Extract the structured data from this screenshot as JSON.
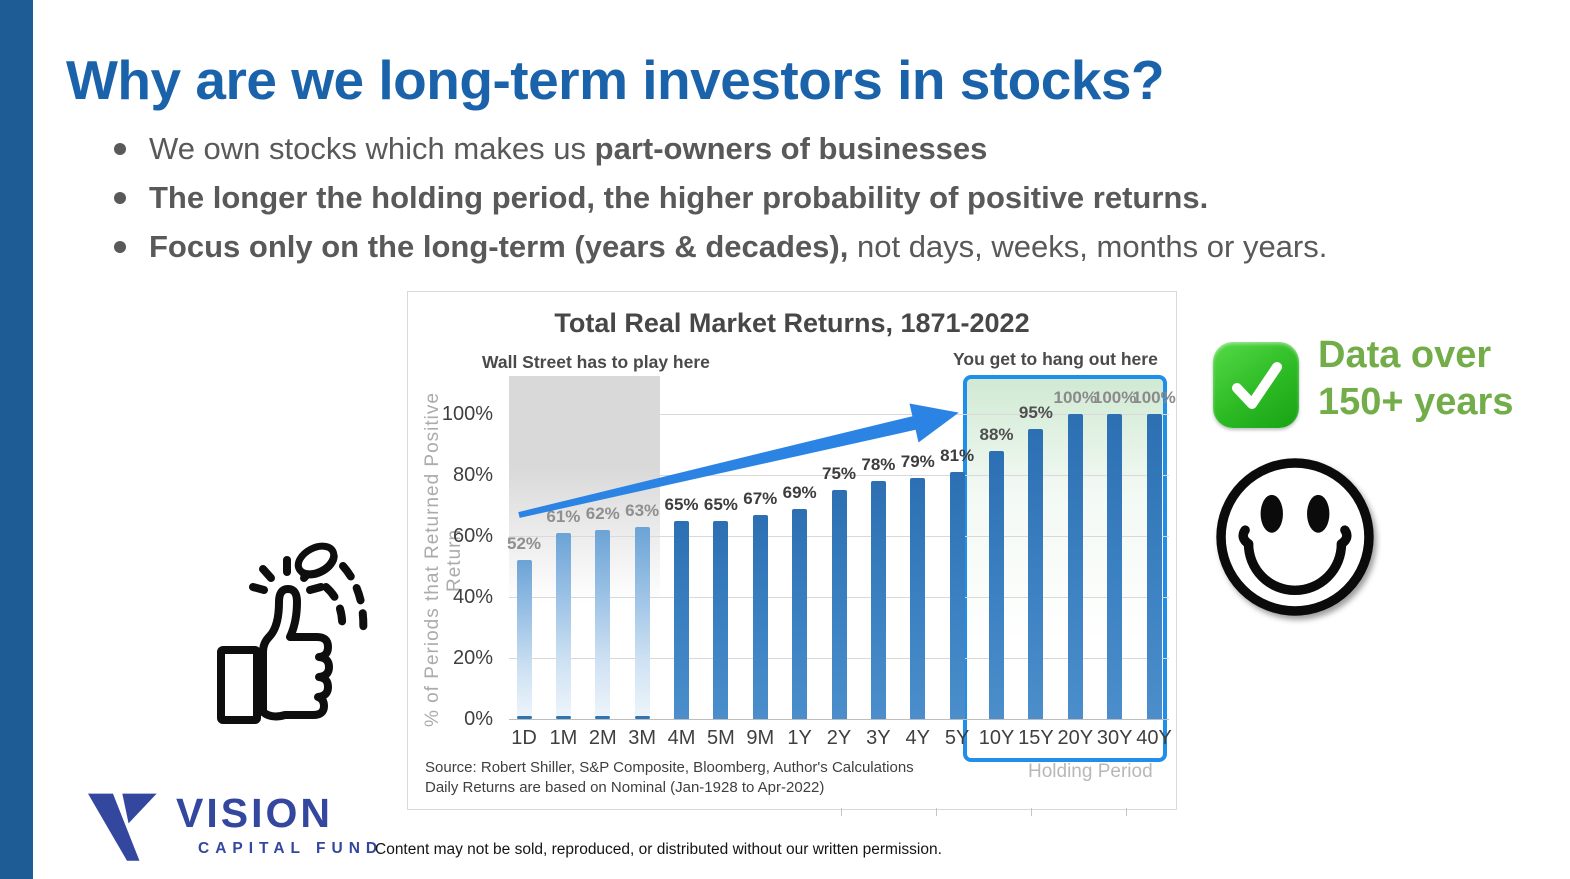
{
  "slide": {
    "title": "Why are we long-term investors in stocks?",
    "bullets": [
      {
        "pre": "We own stocks which makes us ",
        "bold": "part-owners of businesses",
        "post": ""
      },
      {
        "pre": "",
        "bold": "The longer the holding period, the higher probability of positive returns.",
        "post": ""
      },
      {
        "pre": "",
        "bold": "Focus only on the long-term (years & decades),",
        "post": " not days, weeks, months or years."
      }
    ],
    "callout": {
      "line1": "Data over",
      "line2": "150+ years"
    },
    "logo": {
      "name": "VISION",
      "subname": "CAPITAL FUND"
    },
    "footer_disclaimer": "Content may not be sold, reproduced, or distributed without our written permission.",
    "icons": {
      "callout_icon": "check-mark-icon",
      "mood_icon": "smiley-face-icon",
      "gesture_icon": "thumbs-up-coin-flip-icon",
      "logo_icon": "vision-v-mark-icon"
    },
    "colors": {
      "sidebar_blue": "#1d5c94",
      "title_blue": "#1a63ab",
      "body_gray": "#595959",
      "accent_green": "#72ad4a",
      "logo_navy": "#34479e"
    }
  },
  "chart_data": {
    "type": "bar",
    "title": "Total Real Market Returns, 1871-2022",
    "xlabel": "Holding Period",
    "ylabel": "% of Periods that Returned Positive Return",
    "categories": [
      "1D",
      "1M",
      "2M",
      "3M",
      "4M",
      "5M",
      "9M",
      "1Y",
      "2Y",
      "3Y",
      "4Y",
      "5Y",
      "10Y",
      "15Y",
      "20Y",
      "30Y",
      "40Y"
    ],
    "values": [
      52,
      61,
      62,
      63,
      65,
      65,
      67,
      69,
      75,
      78,
      79,
      81,
      88,
      95,
      100,
      100,
      100
    ],
    "ylim": [
      0,
      100
    ],
    "yticks": [
      "0%",
      "20%",
      "40%",
      "60%",
      "80%",
      "100%"
    ],
    "grid": true,
    "legend": false,
    "annotations": {
      "left": "Wall Street has to play here",
      "right": "You get to hang out here"
    },
    "source_line1": "Source: Robert Shiller, S&P Composite, Bloomberg, Author's Calculations",
    "source_line2": "Daily Returns are based on Nominal (Jan-1928 to Apr-2022)",
    "faded_until_index": 3,
    "highlight_from_index": 12,
    "label_colors": [
      "#8f8f8f",
      "#8f8f8f",
      "#8f8f8f",
      "#8f8f8f",
      "#3d3d3d",
      "#3d3d3d",
      "#3d3d3d",
      "#3d3d3d",
      "#3d3d3d",
      "#3d3d3d",
      "#3d3d3d",
      "#3d3d3d",
      "#4f4f4f",
      "#4f4f4f",
      "#8a8a8a",
      "#8a8a8a",
      "#8a8a8a"
    ],
    "colors": {
      "bar": "#2e74b6",
      "bar_faded_top": "#6ba3d6",
      "arrow": "#2b84e4",
      "box_border": "#1f8fe9",
      "gridline": "#d9d9d9"
    }
  }
}
